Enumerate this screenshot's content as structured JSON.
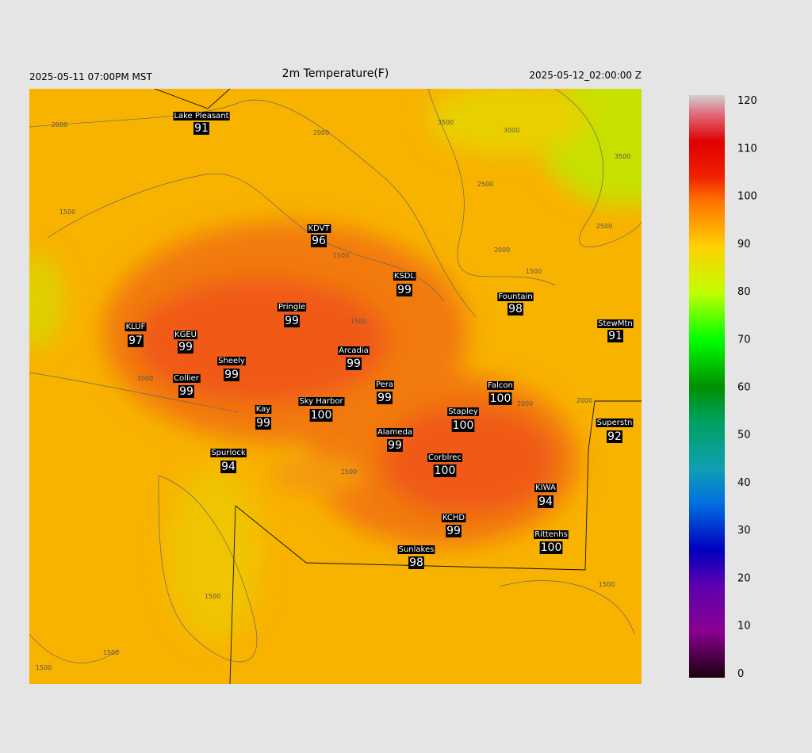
{
  "header": {
    "left": "2025-05-11 07:00PM MST",
    "title": "2m Temperature(F)",
    "right": "2025-05-12_02:00:00 Z"
  },
  "stations": [
    {
      "name": "Lake Pleasant",
      "value": 91
    },
    {
      "name": "KDVT",
      "value": 96
    },
    {
      "name": "KSDL",
      "value": 99
    },
    {
      "name": "Fountain",
      "value": 98
    },
    {
      "name": "StewMtn",
      "value": 91
    },
    {
      "name": "KLUF",
      "value": 97
    },
    {
      "name": "KGEU",
      "value": 99
    },
    {
      "name": "Pringle",
      "value": 99
    },
    {
      "name": "Arcadia",
      "value": 99
    },
    {
      "name": "Sheely",
      "value": 99
    },
    {
      "name": "Collier",
      "value": 99
    },
    {
      "name": "Pera",
      "value": 99
    },
    {
      "name": "Falcon",
      "value": 100
    },
    {
      "name": "Sky Harbor",
      "value": 100
    },
    {
      "name": "Kay",
      "value": 99
    },
    {
      "name": "Stapley",
      "value": 100
    },
    {
      "name": "Superstn",
      "value": 92
    },
    {
      "name": "Alameda",
      "value": 99
    },
    {
      "name": "Spurlock",
      "value": 94
    },
    {
      "name": "Corblrec",
      "value": 100
    },
    {
      "name": "KIWA",
      "value": 94
    },
    {
      "name": "KCHD",
      "value": 99
    },
    {
      "name": "Rittenhs",
      "value": 100
    },
    {
      "name": "Sunlakes",
      "value": 98
    }
  ],
  "contour_labels": [
    2000,
    2000,
    3500,
    3000,
    2500,
    3500,
    2500,
    2000,
    1500,
    1500,
    1500,
    1500,
    1000,
    2000,
    2000,
    1500,
    1500,
    1500,
    1500,
    1500
  ],
  "colorbar": {
    "lim": [
      -1,
      121
    ],
    "ticks": [
      0,
      10,
      20,
      30,
      40,
      50,
      60,
      70,
      80,
      90,
      100,
      110,
      120
    ]
  }
}
